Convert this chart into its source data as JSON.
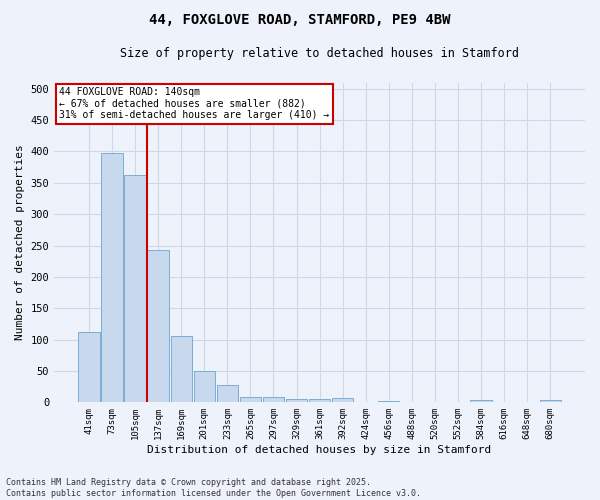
{
  "title": "44, FOXGLOVE ROAD, STAMFORD, PE9 4BW",
  "subtitle": "Size of property relative to detached houses in Stamford",
  "xlabel": "Distribution of detached houses by size in Stamford",
  "ylabel": "Number of detached properties",
  "categories": [
    "41sqm",
    "73sqm",
    "105sqm",
    "137sqm",
    "169sqm",
    "201sqm",
    "233sqm",
    "265sqm",
    "297sqm",
    "329sqm",
    "361sqm",
    "392sqm",
    "424sqm",
    "456sqm",
    "488sqm",
    "520sqm",
    "552sqm",
    "584sqm",
    "616sqm",
    "648sqm",
    "680sqm"
  ],
  "values": [
    112,
    397,
    363,
    243,
    105,
    50,
    28,
    9,
    8,
    6,
    5,
    7,
    0,
    2,
    0,
    0,
    0,
    3,
    0,
    0,
    4
  ],
  "bar_color": "#c9d9ed",
  "bar_edge_color": "#7aaed6",
  "grid_color": "#d0d8e8",
  "background_color": "#eef2fa",
  "vline_color": "#cc0000",
  "vline_x_index": 3,
  "annotation_line1": "44 FOXGLOVE ROAD: 140sqm",
  "annotation_line2": "← 67% of detached houses are smaller (882)",
  "annotation_line3": "31% of semi-detached houses are larger (410) →",
  "annotation_box_color": "#ffffff",
  "annotation_box_edge": "#cc0000",
  "footer": "Contains HM Land Registry data © Crown copyright and database right 2025.\nContains public sector information licensed under the Open Government Licence v3.0.",
  "ylim": [
    0,
    510
  ],
  "yticks": [
    0,
    50,
    100,
    150,
    200,
    250,
    300,
    350,
    400,
    450,
    500
  ]
}
